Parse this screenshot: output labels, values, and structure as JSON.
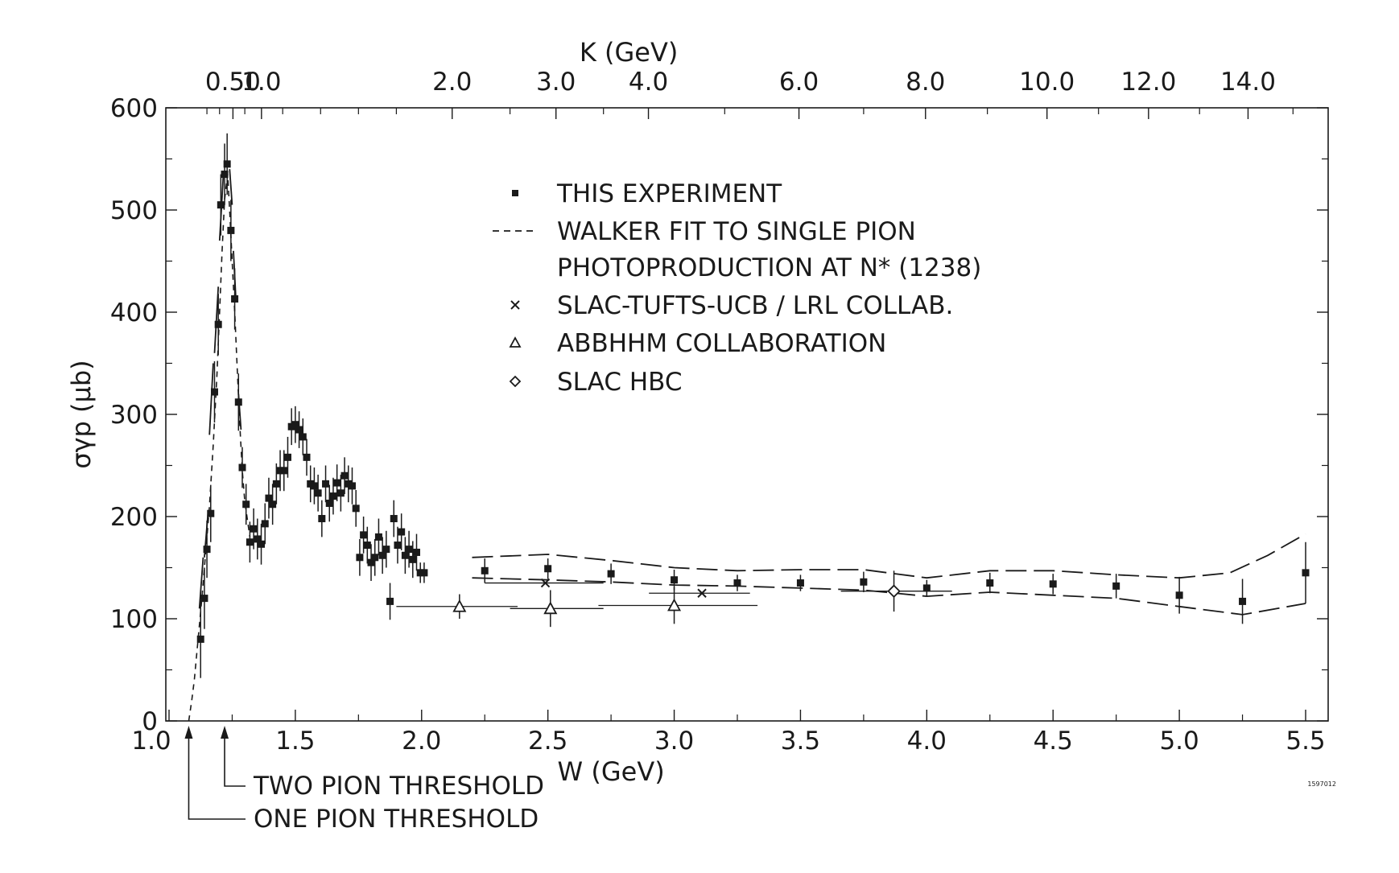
{
  "colors": {
    "ink": "#1a1a1a",
    "background": "#ffffff"
  },
  "chart_data": {
    "type": "scatter",
    "xlabel": "W (GeV)",
    "ylabel": "σγp (μb)",
    "top_axis_label": "K (GeV)",
    "xlim": [
      1.0,
      5.55
    ],
    "ylim": [
      0,
      600
    ],
    "x_ticks": [
      1.0,
      1.5,
      2.0,
      2.5,
      3.0,
      3.5,
      4.0,
      4.5,
      5.0,
      5.5
    ],
    "x_tick_labels": [
      "1.0",
      "1.5",
      "2.0",
      "2.5",
      "3.0",
      "3.5",
      "4.0",
      "4.5",
      "5.0",
      "5.5"
    ],
    "y_ticks": [
      0,
      100,
      200,
      300,
      400,
      500,
      600
    ],
    "y_tick_labels": [
      "0",
      "100",
      "200",
      "300",
      "400",
      "500",
      "600"
    ],
    "top_ticks": [
      {
        "w": 1.253,
        "label": "0.50"
      },
      {
        "w": 1.366,
        "label": "1.0"
      },
      {
        "w": 2.121,
        "label": "2.0"
      },
      {
        "w": 2.532,
        "label": "3.0"
      },
      {
        "w": 2.898,
        "label": "4.0"
      },
      {
        "w": 3.494,
        "label": "6.0"
      },
      {
        "w": 3.995,
        "label": "8.0"
      },
      {
        "w": 4.476,
        "label": "10.0"
      },
      {
        "w": 4.878,
        "label": "12.0"
      },
      {
        "w": 5.272,
        "label": "14.0"
      }
    ],
    "legend": [
      {
        "marker": "filled-square",
        "label": "THIS EXPERIMENT"
      },
      {
        "marker": "dashed-line",
        "label": "WALKER FIT TO SINGLE PION"
      },
      {
        "marker": "none",
        "label": "PHOTOPRODUCTION AT N* (1238)"
      },
      {
        "marker": "cross",
        "label": "SLAC-TUFTS-UCB / LRL COLLAB."
      },
      {
        "marker": "triangle",
        "label": "ABBHHM COLLABORATION"
      },
      {
        "marker": "diamond",
        "label": "SLAC HBC"
      }
    ],
    "annotations": [
      {
        "label": "TWO PION THRESHOLD",
        "w": 1.22
      },
      {
        "label": "ONE PION THRESHOLD",
        "w": 1.078
      }
    ],
    "figure_code": "1597012",
    "series": [
      {
        "name": "THIS EXPERIMENT",
        "marker": "filled-square",
        "points": [
          {
            "x": 1.125,
            "y": 80,
            "err": 38
          },
          {
            "x": 1.14,
            "y": 120,
            "err": 30
          },
          {
            "x": 1.15,
            "y": 168,
            "err": 28
          },
          {
            "x": 1.165,
            "y": 203,
            "err": 28
          },
          {
            "x": 1.18,
            "y": 322,
            "err": 30
          },
          {
            "x": 1.195,
            "y": 388,
            "err": 30
          },
          {
            "x": 1.205,
            "y": 505,
            "err": 30
          },
          {
            "x": 1.22,
            "y": 535,
            "err": 30
          },
          {
            "x": 1.23,
            "y": 545,
            "err": 30
          },
          {
            "x": 1.245,
            "y": 480,
            "err": 30
          },
          {
            "x": 1.26,
            "y": 413,
            "err": 30
          },
          {
            "x": 1.275,
            "y": 312,
            "err": 28
          },
          {
            "x": 1.29,
            "y": 248,
            "err": 20
          },
          {
            "x": 1.305,
            "y": 212,
            "err": 20
          },
          {
            "x": 1.32,
            "y": 175,
            "err": 20
          },
          {
            "x": 1.335,
            "y": 188,
            "err": 20
          },
          {
            "x": 1.35,
            "y": 178,
            "err": 20
          },
          {
            "x": 1.365,
            "y": 173,
            "err": 20
          },
          {
            "x": 1.38,
            "y": 193,
            "err": 20
          },
          {
            "x": 1.395,
            "y": 218,
            "err": 20
          },
          {
            "x": 1.41,
            "y": 212,
            "err": 20
          },
          {
            "x": 1.425,
            "y": 232,
            "err": 20
          },
          {
            "x": 1.44,
            "y": 245,
            "err": 20
          },
          {
            "x": 1.455,
            "y": 245,
            "err": 20
          },
          {
            "x": 1.47,
            "y": 258,
            "err": 20
          },
          {
            "x": 1.485,
            "y": 288,
            "err": 18
          },
          {
            "x": 1.5,
            "y": 290,
            "err": 18
          },
          {
            "x": 1.515,
            "y": 285,
            "err": 18
          },
          {
            "x": 1.53,
            "y": 278,
            "err": 18
          },
          {
            "x": 1.545,
            "y": 258,
            "err": 18
          },
          {
            "x": 1.56,
            "y": 232,
            "err": 18
          },
          {
            "x": 1.575,
            "y": 230,
            "err": 18
          },
          {
            "x": 1.59,
            "y": 223,
            "err": 18
          },
          {
            "x": 1.605,
            "y": 198,
            "err": 18
          },
          {
            "x": 1.62,
            "y": 232,
            "err": 18
          },
          {
            "x": 1.635,
            "y": 213,
            "err": 18
          },
          {
            "x": 1.65,
            "y": 220,
            "err": 18
          },
          {
            "x": 1.665,
            "y": 233,
            "err": 18
          },
          {
            "x": 1.68,
            "y": 223,
            "err": 18
          },
          {
            "x": 1.695,
            "y": 240,
            "err": 18
          },
          {
            "x": 1.71,
            "y": 232,
            "err": 18
          },
          {
            "x": 1.725,
            "y": 230,
            "err": 18
          },
          {
            "x": 1.74,
            "y": 208,
            "err": 18
          },
          {
            "x": 1.755,
            "y": 160,
            "err": 18
          },
          {
            "x": 1.77,
            "y": 182,
            "err": 18
          },
          {
            "x": 1.785,
            "y": 172,
            "err": 18
          },
          {
            "x": 1.8,
            "y": 155,
            "err": 18
          },
          {
            "x": 1.815,
            "y": 160,
            "err": 18
          },
          {
            "x": 1.83,
            "y": 180,
            "err": 18
          },
          {
            "x": 1.845,
            "y": 162,
            "err": 18
          },
          {
            "x": 1.86,
            "y": 168,
            "err": 18
          },
          {
            "x": 1.875,
            "y": 117,
            "err": 18
          },
          {
            "x": 1.89,
            "y": 198,
            "err": 18
          },
          {
            "x": 1.905,
            "y": 172,
            "err": 18
          },
          {
            "x": 1.92,
            "y": 185,
            "err": 18
          },
          {
            "x": 1.935,
            "y": 162,
            "err": 18
          },
          {
            "x": 1.95,
            "y": 168,
            "err": 18
          },
          {
            "x": 1.965,
            "y": 158,
            "err": 18
          },
          {
            "x": 1.98,
            "y": 165,
            "err": 18
          },
          {
            "x": 1.995,
            "y": 145,
            "err": 10
          },
          {
            "x": 2.01,
            "y": 145,
            "err": 10
          },
          {
            "x": 2.25,
            "y": 147,
            "err": 12
          },
          {
            "x": 2.5,
            "y": 149,
            "err": 10
          },
          {
            "x": 2.75,
            "y": 144,
            "err": 10
          },
          {
            "x": 3.0,
            "y": 138,
            "err": 10
          },
          {
            "x": 3.25,
            "y": 135,
            "err": 8
          },
          {
            "x": 3.5,
            "y": 135,
            "err": 8
          },
          {
            "x": 3.75,
            "y": 136,
            "err": 10
          },
          {
            "x": 4.0,
            "y": 130,
            "err": 8
          },
          {
            "x": 4.25,
            "y": 135,
            "err": 10
          },
          {
            "x": 4.5,
            "y": 134,
            "err": 10
          },
          {
            "x": 4.75,
            "y": 132,
            "err": 12
          },
          {
            "x": 5.0,
            "y": 123,
            "err": 18
          },
          {
            "x": 5.25,
            "y": 117,
            "err": 22
          },
          {
            "x": 5.5,
            "y": 145,
            "err": 30
          }
        ]
      },
      {
        "name": "SLAC-TUFTS-UCB / LRL COLLAB.",
        "marker": "cross",
        "points": [
          {
            "x": 2.49,
            "y": 135,
            "xmin": 2.25,
            "xmax": 2.72
          },
          {
            "x": 3.11,
            "y": 125,
            "xmin": 2.9,
            "xmax": 3.3
          }
        ]
      },
      {
        "name": "ABBHHM COLLABORATION",
        "marker": "triangle",
        "points": [
          {
            "x": 2.15,
            "y": 112,
            "err": 12,
            "xmin": 1.9,
            "xmax": 2.38
          },
          {
            "x": 2.51,
            "y": 110,
            "err": 18,
            "xmin": 2.35,
            "xmax": 2.72
          },
          {
            "x": 3.0,
            "y": 113,
            "err": 18,
            "xmin": 2.7,
            "xmax": 3.33
          }
        ]
      },
      {
        "name": "SLAC HBC",
        "marker": "diamond",
        "points": [
          {
            "x": 3.87,
            "y": 127,
            "err": 20,
            "xmin": 3.66,
            "xmax": 4.1
          }
        ]
      },
      {
        "name": "WALKER FIT TO SINGLE PION",
        "marker": "dashed-line",
        "points": [
          [
            1.078,
            0
          ],
          [
            1.09,
            20
          ],
          [
            1.1,
            40
          ],
          [
            1.115,
            80
          ],
          [
            1.13,
            120
          ],
          [
            1.145,
            165
          ],
          [
            1.16,
            210
          ],
          [
            1.175,
            270
          ],
          [
            1.19,
            340
          ],
          [
            1.2,
            400
          ],
          [
            1.21,
            460
          ],
          [
            1.22,
            510
          ],
          [
            1.232,
            535
          ],
          [
            1.24,
            500
          ],
          [
            1.25,
            450
          ],
          [
            1.26,
            400
          ],
          [
            1.27,
            345
          ],
          [
            1.28,
            290
          ],
          [
            1.29,
            245
          ],
          [
            1.3,
            215
          ],
          [
            1.32,
            180
          ]
        ]
      },
      {
        "name": "walker-segments",
        "marker": "short-dashes",
        "segments": [
          [
            [
              1.12,
              110
            ],
            [
              1.135,
              160
            ]
          ],
          [
            [
              1.14,
              160
            ],
            [
              1.155,
              205
            ]
          ],
          [
            [
              1.16,
              280
            ],
            [
              1.175,
              350
            ]
          ],
          [
            [
              1.18,
              360
            ],
            [
              1.195,
              425
            ]
          ],
          [
            [
              1.2,
              470
            ],
            [
              1.215,
              535
            ]
          ],
          [
            [
              1.24,
              540
            ],
            [
              1.25,
              505
            ]
          ],
          [
            [
              1.255,
              460
            ],
            [
              1.265,
              410
            ]
          ],
          [
            [
              1.275,
              320
            ],
            [
              1.285,
              285
            ]
          ]
        ]
      },
      {
        "name": "band-upper",
        "marker": "long-dash",
        "points": [
          [
            2.2,
            160
          ],
          [
            2.5,
            163
          ],
          [
            2.75,
            157
          ],
          [
            3.0,
            150
          ],
          [
            3.25,
            147
          ],
          [
            3.5,
            148
          ],
          [
            3.75,
            148
          ],
          [
            4.0,
            140
          ],
          [
            4.25,
            147
          ],
          [
            4.5,
            147
          ],
          [
            4.75,
            143
          ],
          [
            5.0,
            140
          ],
          [
            5.2,
            145
          ],
          [
            5.35,
            162
          ],
          [
            5.5,
            183
          ]
        ]
      },
      {
        "name": "band-lower",
        "marker": "long-dash",
        "points": [
          [
            2.2,
            140
          ],
          [
            2.5,
            138
          ],
          [
            2.75,
            136
          ],
          [
            3.0,
            133
          ],
          [
            3.25,
            132
          ],
          [
            3.5,
            130
          ],
          [
            3.75,
            128
          ],
          [
            4.0,
            122
          ],
          [
            4.25,
            126
          ],
          [
            4.5,
            123
          ],
          [
            4.75,
            120
          ],
          [
            5.0,
            112
          ],
          [
            5.25,
            104
          ],
          [
            5.5,
            115
          ]
        ]
      }
    ]
  }
}
